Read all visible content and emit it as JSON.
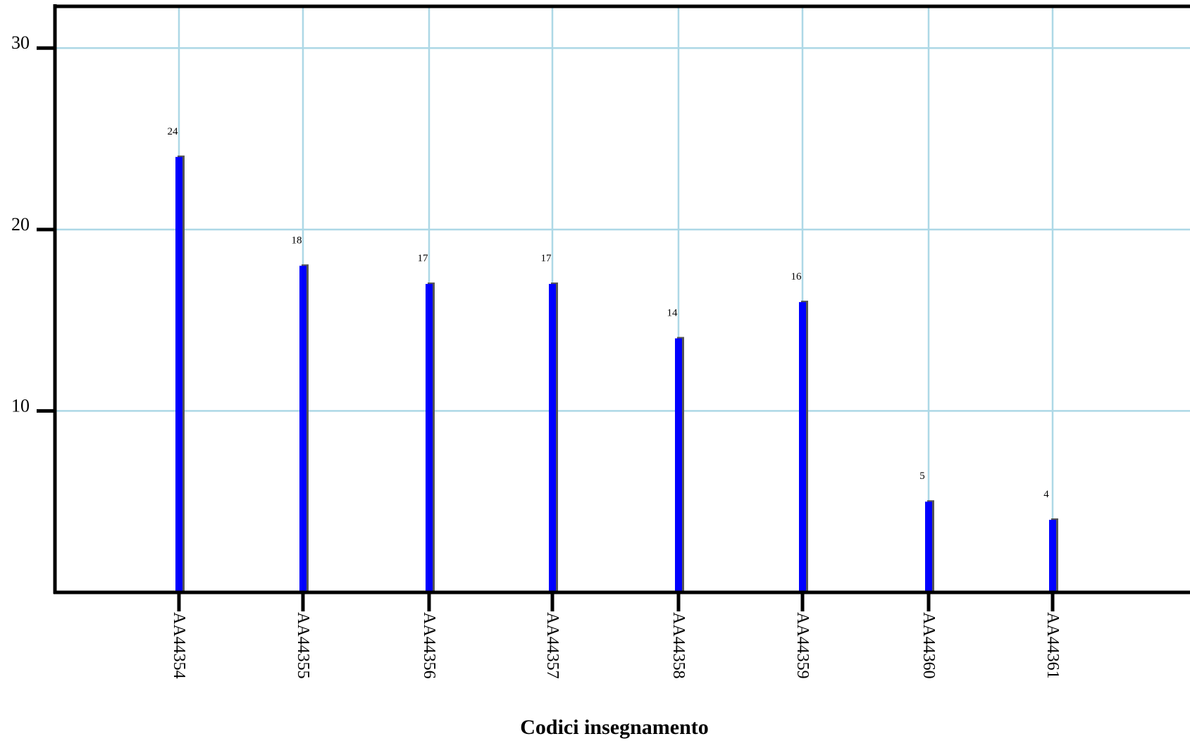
{
  "chart_data": {
    "type": "bar",
    "title": "",
    "xlabel": "Codici insegnamento",
    "ylabel": "",
    "categories": [
      "AA44354",
      "AA44355",
      "AA44356",
      "AA44357",
      "AA44358",
      "AA44359",
      "AA44360",
      "AA44361"
    ],
    "values": [
      24,
      18,
      17,
      17,
      14,
      16,
      5,
      4
    ],
    "ylim": [
      0,
      32.3
    ],
    "yticks": [
      10,
      20,
      30
    ],
    "grid": true,
    "legend": "none",
    "colors": {
      "bar": "#0000ff",
      "bar_shadow": "#555555",
      "grid": "#add8e6",
      "axis": "#000000"
    }
  }
}
